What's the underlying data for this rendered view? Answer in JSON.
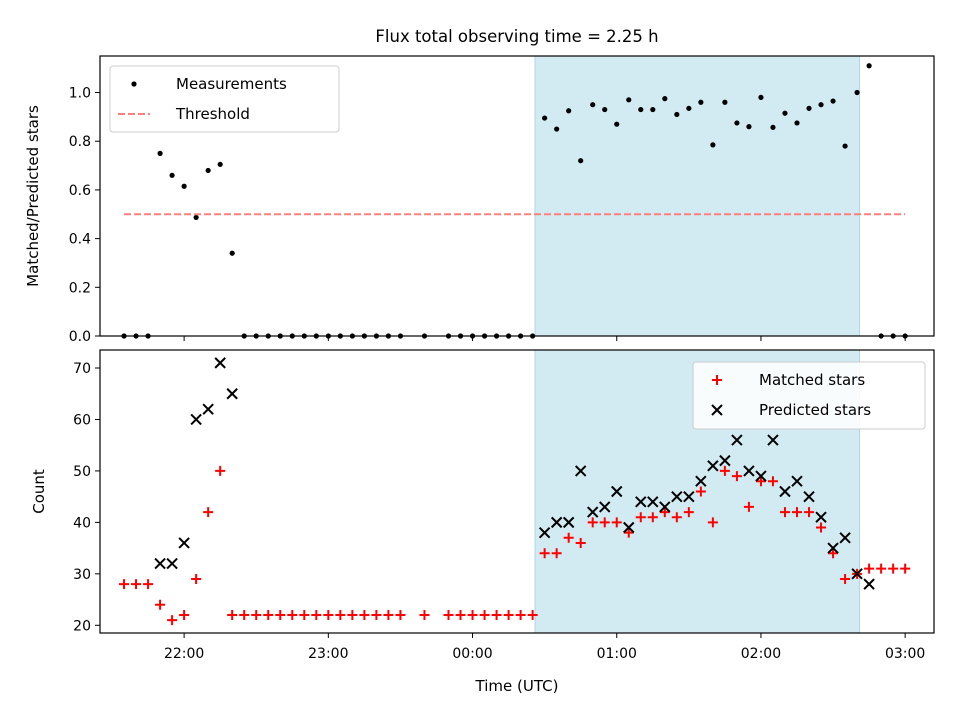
{
  "chart_data": [
    {
      "type": "scatter",
      "title": "Flux total observing time = 2.25 h",
      "xlabel": "",
      "ylabel": "Matched/Predicted stars",
      "xlim": [
        "21:25",
        "03:12"
      ],
      "ylim": [
        0,
        1.15
      ],
      "yticks": [
        0.0,
        0.2,
        0.4,
        0.6,
        0.8,
        1.0
      ],
      "yticklabels": [
        "0.0",
        "0.2",
        "0.4",
        "0.6",
        "0.8",
        "1.0"
      ],
      "highlight_span": [
        "00:26",
        "02:41"
      ],
      "highlight_color": "#add8e6",
      "legend_position": "top-left",
      "series": [
        {
          "name": "Measurements",
          "marker": "dot",
          "color": "#000000",
          "points": [
            [
              "21:35",
              0.0
            ],
            [
              "21:40",
              0.0
            ],
            [
              "21:45",
              0.0
            ],
            [
              "21:50",
              0.75
            ],
            [
              "21:55",
              0.66
            ],
            [
              "22:00",
              0.615
            ],
            [
              "22:05",
              0.487
            ],
            [
              "22:10",
              0.68
            ],
            [
              "22:15",
              0.705
            ],
            [
              "22:20",
              0.34
            ],
            [
              "22:25",
              0.0
            ],
            [
              "22:30",
              0.0
            ],
            [
              "22:35",
              0.0
            ],
            [
              "22:40",
              0.0
            ],
            [
              "22:45",
              0.0
            ],
            [
              "22:50",
              0.0
            ],
            [
              "22:55",
              0.0
            ],
            [
              "23:00",
              0.0
            ],
            [
              "23:05",
              0.0
            ],
            [
              "23:10",
              0.0
            ],
            [
              "23:15",
              0.0
            ],
            [
              "23:20",
              0.0
            ],
            [
              "23:25",
              0.0
            ],
            [
              "23:30",
              0.0
            ],
            [
              "23:40",
              0.0
            ],
            [
              "23:50",
              0.0
            ],
            [
              "23:55",
              0.0
            ],
            [
              "00:00",
              0.0
            ],
            [
              "00:05",
              0.0
            ],
            [
              "00:10",
              0.0
            ],
            [
              "00:15",
              0.0
            ],
            [
              "00:20",
              0.0
            ],
            [
              "00:25",
              0.0
            ],
            [
              "00:30",
              0.895
            ],
            [
              "00:35",
              0.85
            ],
            [
              "00:40",
              0.925
            ],
            [
              "00:45",
              0.72
            ],
            [
              "00:50",
              0.95
            ],
            [
              "00:55",
              0.93
            ],
            [
              "01:00",
              0.87
            ],
            [
              "01:05",
              0.97
            ],
            [
              "01:10",
              0.93
            ],
            [
              "01:15",
              0.93
            ],
            [
              "01:20",
              0.975
            ],
            [
              "01:25",
              0.91
            ],
            [
              "01:30",
              0.935
            ],
            [
              "01:35",
              0.96
            ],
            [
              "01:40",
              0.785
            ],
            [
              "01:45",
              0.96
            ],
            [
              "01:50",
              0.875
            ],
            [
              "01:55",
              0.86
            ],
            [
              "02:00",
              0.98
            ],
            [
              "02:05",
              0.857
            ],
            [
              "02:10",
              0.915
            ],
            [
              "02:15",
              0.875
            ],
            [
              "02:20",
              0.935
            ],
            [
              "02:25",
              0.95
            ],
            [
              "02:30",
              0.965
            ],
            [
              "02:35",
              0.78
            ],
            [
              "02:40",
              1.0
            ],
            [
              "02:45",
              1.11
            ],
            [
              "02:50",
              0.0
            ],
            [
              "02:55",
              0.0
            ],
            [
              "03:00",
              0.0
            ]
          ]
        },
        {
          "name": "Threshold",
          "style": "dashed-line",
          "color": "#ff7f7f",
          "points": [
            [
              "21:35",
              0.5
            ],
            [
              "03:00",
              0.5
            ]
          ]
        }
      ]
    },
    {
      "type": "scatter",
      "title": "",
      "xlabel": "Time (UTC)",
      "ylabel": "Count",
      "xlim": [
        "21:25",
        "03:12"
      ],
      "ylim": [
        18.5,
        73.5
      ],
      "yticks": [
        20,
        30,
        40,
        50,
        60,
        70
      ],
      "yticklabels": [
        "20",
        "30",
        "40",
        "50",
        "60",
        "70"
      ],
      "xticks": [
        "22:00",
        "23:00",
        "00:00",
        "01:00",
        "02:00",
        "03:00"
      ],
      "xticklabels": [
        "22:00",
        "23:00",
        "00:00",
        "01:00",
        "02:00",
        "03:00"
      ],
      "highlight_span": [
        "00:26",
        "02:41"
      ],
      "highlight_color": "#add8e6",
      "legend_position": "top-right",
      "series": [
        {
          "name": "Matched stars",
          "marker": "plus",
          "color": "#ff0000",
          "points": [
            [
              "21:35",
              28
            ],
            [
              "21:40",
              28
            ],
            [
              "21:45",
              28
            ],
            [
              "21:50",
              24
            ],
            [
              "21:55",
              21
            ],
            [
              "22:00",
              22
            ],
            [
              "22:05",
              29
            ],
            [
              "22:10",
              42
            ],
            [
              "22:15",
              50
            ],
            [
              "22:20",
              22
            ],
            [
              "22:25",
              22
            ],
            [
              "22:30",
              22
            ],
            [
              "22:35",
              22
            ],
            [
              "22:40",
              22
            ],
            [
              "22:45",
              22
            ],
            [
              "22:50",
              22
            ],
            [
              "22:55",
              22
            ],
            [
              "23:00",
              22
            ],
            [
              "23:05",
              22
            ],
            [
              "23:10",
              22
            ],
            [
              "23:15",
              22
            ],
            [
              "23:20",
              22
            ],
            [
              "23:25",
              22
            ],
            [
              "23:30",
              22
            ],
            [
              "23:40",
              22
            ],
            [
              "23:50",
              22
            ],
            [
              "23:55",
              22
            ],
            [
              "00:00",
              22
            ],
            [
              "00:05",
              22
            ],
            [
              "00:10",
              22
            ],
            [
              "00:15",
              22
            ],
            [
              "00:20",
              22
            ],
            [
              "00:25",
              22
            ],
            [
              "00:30",
              34
            ],
            [
              "00:35",
              34
            ],
            [
              "00:40",
              37
            ],
            [
              "00:45",
              36
            ],
            [
              "00:50",
              40
            ],
            [
              "00:55",
              40
            ],
            [
              "01:00",
              40
            ],
            [
              "01:05",
              38
            ],
            [
              "01:10",
              41
            ],
            [
              "01:15",
              41
            ],
            [
              "01:20",
              42
            ],
            [
              "01:25",
              41
            ],
            [
              "01:30",
              42
            ],
            [
              "01:35",
              46
            ],
            [
              "01:40",
              40
            ],
            [
              "01:45",
              50
            ],
            [
              "01:50",
              49
            ],
            [
              "01:55",
              43
            ],
            [
              "02:00",
              48
            ],
            [
              "02:05",
              48
            ],
            [
              "02:10",
              42
            ],
            [
              "02:15",
              42
            ],
            [
              "02:20",
              42
            ],
            [
              "02:25",
              39
            ],
            [
              "02:30",
              34
            ],
            [
              "02:35",
              29
            ],
            [
              "02:40",
              30
            ],
            [
              "02:45",
              31
            ],
            [
              "02:50",
              31
            ],
            [
              "02:55",
              31
            ],
            [
              "03:00",
              31
            ]
          ]
        },
        {
          "name": "Predicted stars",
          "marker": "x",
          "color": "#000000",
          "points": [
            [
              "21:50",
              32
            ],
            [
              "21:55",
              32
            ],
            [
              "22:00",
              36
            ],
            [
              "22:05",
              60
            ],
            [
              "22:10",
              62
            ],
            [
              "22:15",
              71
            ],
            [
              "22:20",
              65
            ],
            [
              "00:30",
              38
            ],
            [
              "00:35",
              40
            ],
            [
              "00:40",
              40
            ],
            [
              "00:45",
              50
            ],
            [
              "00:50",
              42
            ],
            [
              "00:55",
              43
            ],
            [
              "01:00",
              46
            ],
            [
              "01:05",
              39
            ],
            [
              "01:10",
              44
            ],
            [
              "01:15",
              44
            ],
            [
              "01:20",
              43
            ],
            [
              "01:25",
              45
            ],
            [
              "01:30",
              45
            ],
            [
              "01:35",
              48
            ],
            [
              "01:40",
              51
            ],
            [
              "01:45",
              52
            ],
            [
              "01:50",
              56
            ],
            [
              "01:55",
              50
            ],
            [
              "02:00",
              49
            ],
            [
              "02:05",
              56
            ],
            [
              "02:10",
              46
            ],
            [
              "02:15",
              48
            ],
            [
              "02:20",
              45
            ],
            [
              "02:25",
              41
            ],
            [
              "02:30",
              35
            ],
            [
              "02:35",
              37
            ],
            [
              "02:40",
              30
            ],
            [
              "02:45",
              28
            ]
          ]
        }
      ]
    }
  ]
}
